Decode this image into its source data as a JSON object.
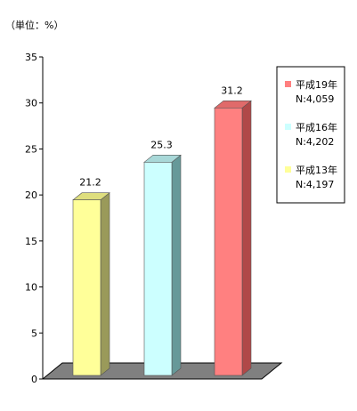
{
  "chart_data": {
    "type": "bar",
    "title": "",
    "unit_label": "（単位：%）",
    "categories": [
      "平成13年",
      "平成16年",
      "平成19年"
    ],
    "values": [
      21.2,
      25.3,
      31.2
    ],
    "value_labels": [
      "21.2",
      "25.3",
      "31.2"
    ],
    "ylim": [
      0,
      35
    ],
    "yticks": [
      "0",
      "5",
      "10",
      "15",
      "20",
      "25",
      "30",
      "35"
    ],
    "legend_placement": "right",
    "legend": [
      {
        "name": "平成19年",
        "n": "N:4,059",
        "color": "#ff8080"
      },
      {
        "name": "平成16年",
        "n": "N:4,202",
        "color": "#ccffff"
      },
      {
        "name": "平成13年",
        "n": "N:4,197",
        "color": "#ffff99"
      }
    ],
    "bar_colors": [
      "#ffff99",
      "#ccffff",
      "#ff8080"
    ],
    "bar_side_colors": [
      "#9a9a5a",
      "#669999",
      "#b04848"
    ],
    "bar_top_colors": [
      "#dede7e",
      "#a8d8d8",
      "#e06a6a"
    ],
    "floor_color": "#808080",
    "grid": false
  }
}
